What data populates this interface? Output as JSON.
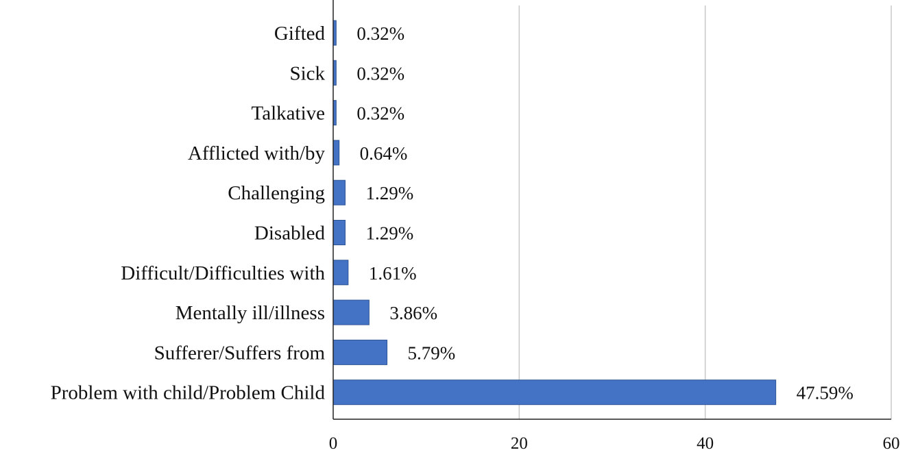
{
  "chart_data": {
    "type": "bar",
    "orientation": "horizontal",
    "title": "",
    "xlabel": "",
    "ylabel": "",
    "xlim": [
      0,
      60
    ],
    "x_ticks": [
      0,
      20,
      40,
      60
    ],
    "x_tick_labels": [
      "0",
      "20",
      "40",
      "60"
    ],
    "grid": true,
    "legend": "none",
    "bar_color": "#4472c4",
    "bar_border_color": "#2f5597",
    "categories": [
      "Gifted",
      "Sick",
      "Talkative",
      "Afflicted with/by",
      "Challenging",
      "Disabled",
      "Difficult/Difficulties with",
      "Mentally ill/illness",
      "Sufferer/Suffers from",
      "Problem with child/Problem Child"
    ],
    "values": [
      0.32,
      0.32,
      0.32,
      0.64,
      1.29,
      1.29,
      1.61,
      3.86,
      5.79,
      47.59
    ],
    "data_labels": [
      "0.32%",
      "0.32%",
      "0.32%",
      "0.64%",
      "1.29%",
      "1.29%",
      "1.61%",
      "3.86%",
      "5.79%",
      "47.59%"
    ]
  }
}
